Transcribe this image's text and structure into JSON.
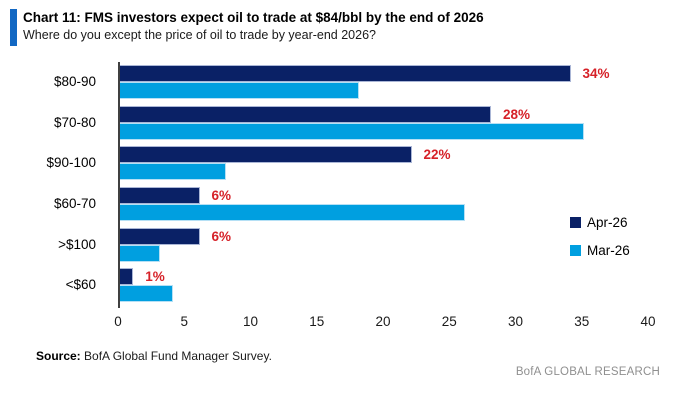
{
  "header": {
    "title": "Chart 11: FMS investors expect oil to trade at $84/bbl by the end of 2026",
    "subtitle": "Where do you except the price of oil to trade by year-end 2026?",
    "accent_color": "#1268c3"
  },
  "chart_data": {
    "type": "bar",
    "orientation": "horizontal",
    "categories": [
      "$80-90",
      "$70-80",
      "$90-100",
      "$60-70",
      ">$100",
      "<$60"
    ],
    "series": [
      {
        "name": "Apr-26",
        "color": "#0a2166",
        "values": [
          34,
          28,
          22,
          6,
          6,
          1
        ],
        "labels": [
          "34%",
          "28%",
          "22%",
          "6%",
          "6%",
          "1%"
        ]
      },
      {
        "name": "Mar-26",
        "color": "#009fe0",
        "values": [
          18,
          35,
          8,
          26,
          3,
          4
        ]
      }
    ],
    "xlim": [
      0,
      40
    ],
    "x_ticks": [
      "0",
      "5",
      "10",
      "15",
      "20",
      "25",
      "30",
      "35",
      "40"
    ],
    "value_label_color": "#d62128",
    "grid": false,
    "legend_position": "right"
  },
  "footer": {
    "source_label": "Source:",
    "source_text": " BofA Global Fund Manager Survey.",
    "brand": "BofA GLOBAL RESEARCH"
  }
}
